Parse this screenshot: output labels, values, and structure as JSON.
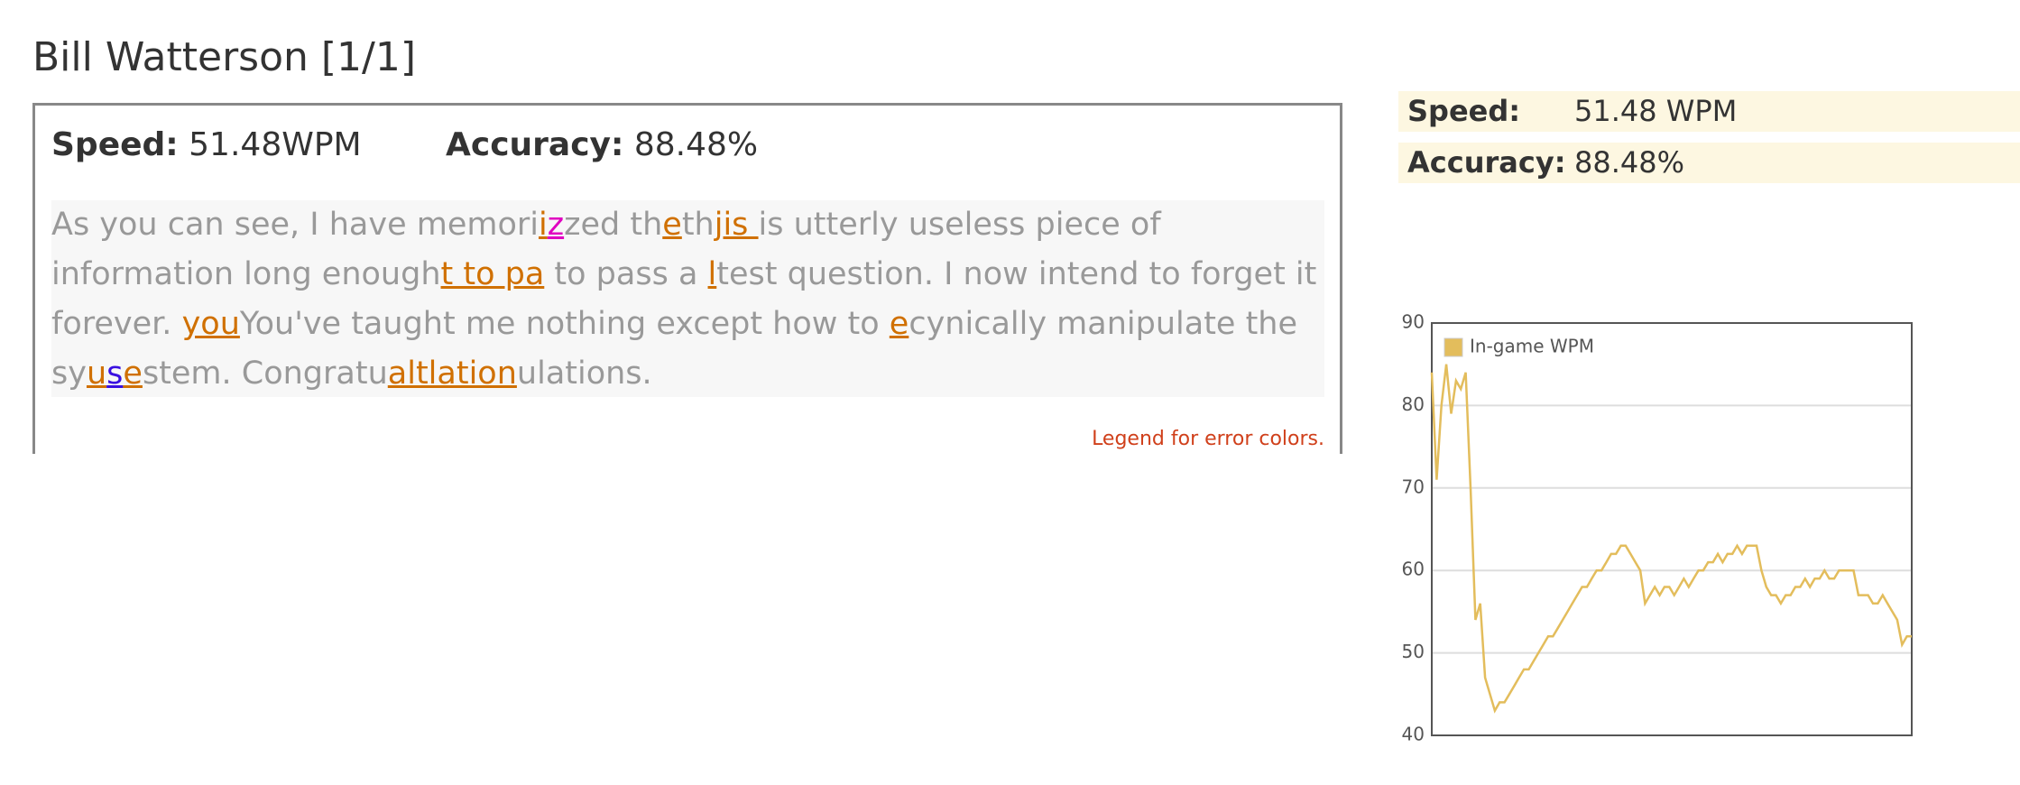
{
  "header": {
    "title": "Bill Watterson [1/1]"
  },
  "result_box": {
    "speed_label": "Speed:",
    "speed_value": "51.48WPM",
    "accuracy_label": "Accuracy:",
    "accuracy_value": "88.48%",
    "passage": [
      {
        "text": "As you can see, I have memori"
      },
      {
        "text": "i",
        "color": "#d07000"
      },
      {
        "text": "z",
        "color": "#e000c0"
      },
      {
        "text": "zed th"
      },
      {
        "text": "e",
        "color": "#d07000"
      },
      {
        "text": "th"
      },
      {
        "text": "jis ",
        "color": "#d07000"
      },
      {
        "text": "is utterly useless piece of information long enough"
      },
      {
        "text": "t to pa",
        "color": "#d07000"
      },
      {
        "text": " to pass a "
      },
      {
        "text": "l",
        "color": "#d07000"
      },
      {
        "text": "test question. I now intend to forget it forever. "
      },
      {
        "text": "you",
        "color": "#d07000"
      },
      {
        "text": "You've taught me nothing except how to "
      },
      {
        "text": "e",
        "color": "#d07000"
      },
      {
        "text": "cynically manipulate the sy"
      },
      {
        "text": "u",
        "color": "#d07000"
      },
      {
        "text": "s",
        "color": "#3a10e0"
      },
      {
        "text": "e",
        "color": "#d07000"
      },
      {
        "text": "stem. Congratu"
      },
      {
        "text": "altlation",
        "color": "#d07000"
      },
      {
        "text": "ulations."
      }
    ],
    "legend_link": "Legend for error colors."
  },
  "side_panel": {
    "speed_label": "Speed:",
    "speed_value": "51.48 WPM",
    "accuracy_label": "Accuracy:",
    "accuracy_value": "88.48%"
  },
  "chart_data": {
    "type": "line",
    "series": [
      {
        "name": "In-game WPM",
        "color": "#e3bd5c",
        "values": [
          84,
          71,
          80,
          85,
          79,
          83,
          82,
          84,
          70,
          54,
          56,
          47,
          45,
          43,
          44,
          44,
          45,
          46,
          47,
          48,
          48,
          49,
          50,
          51,
          52,
          52,
          53,
          54,
          55,
          56,
          57,
          58,
          58,
          59,
          60,
          60,
          61,
          62,
          62,
          63,
          63,
          62,
          61,
          60,
          56,
          57,
          58,
          57,
          58,
          58,
          57,
          58,
          59,
          58,
          59,
          60,
          60,
          61,
          61,
          62,
          61,
          62,
          62,
          63,
          62,
          63,
          63,
          63,
          60,
          58,
          57,
          57,
          56,
          57,
          57,
          58,
          58,
          59,
          58,
          59,
          59,
          60,
          59,
          59,
          60,
          60,
          60,
          60,
          57,
          57,
          57,
          56,
          56,
          57,
          56,
          55,
          54,
          51,
          52,
          52
        ]
      }
    ],
    "ylim": [
      40,
      90
    ],
    "yticks": [
      40,
      50,
      60,
      70,
      80,
      90
    ],
    "grid": true,
    "legend": "top-left"
  }
}
